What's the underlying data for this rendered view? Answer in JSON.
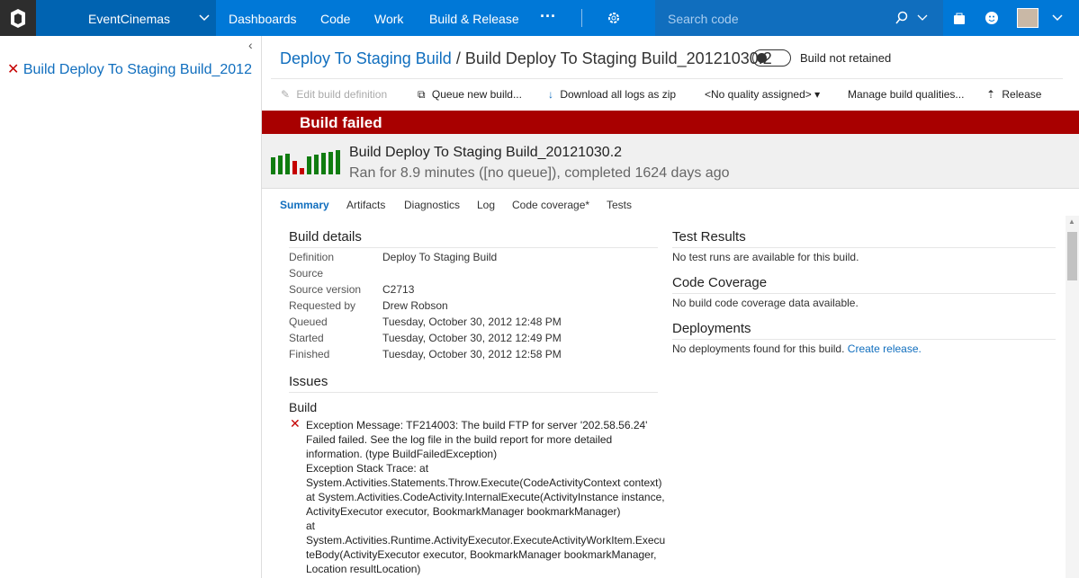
{
  "nav": {
    "project": "EventCinemas",
    "items": [
      "Dashboards",
      "Code",
      "Work",
      "Build & Release"
    ],
    "search_placeholder": "Search code"
  },
  "left_panel": {
    "build_item": "Build Deploy To Staging Build_2012"
  },
  "header": {
    "definition_link": "Deploy To Staging Build",
    "separator": "/",
    "build_name": "Build Deploy To Staging Build_20121030.2",
    "retain_status": "Build not retained"
  },
  "toolbar": [
    "Edit build definition",
    "Queue new build...",
    "Download all logs as zip",
    "<No quality assigned>",
    "Manage build qualities...",
    "Release"
  ],
  "status_banner": "Build failed",
  "summary": {
    "title": "Build Deploy To Staging Build_20121030.2",
    "subtitle": "Ran for 8.9 minutes ([no queue]), completed 1624 days ago"
  },
  "tabs": [
    "Summary",
    "Artifacts",
    "Diagnostics",
    "Log",
    "Code coverage*",
    "Tests"
  ],
  "build_details": {
    "heading": "Build details",
    "rows": [
      [
        "Definition",
        "Deploy To Staging Build"
      ],
      [
        "Source",
        ""
      ],
      [
        "Source version",
        "C2713"
      ],
      [
        "Requested by",
        "Drew Robson"
      ],
      [
        "Queued",
        "Tuesday, October 30, 2012 12:48 PM"
      ],
      [
        "Started",
        "Tuesday, October 30, 2012 12:49 PM"
      ],
      [
        "Finished",
        "Tuesday, October 30, 2012 12:58 PM"
      ]
    ]
  },
  "issues": {
    "heading": "Issues",
    "group": "Build",
    "lines": [
      "Exception Message: TF214003: The build FTP for server '202.58.56.24'",
      "Failed failed. See the log file in the build report for more detailed",
      "information. (type BuildFailedException)",
      "Exception Stack Trace: at",
      "System.Activities.Statements.Throw.Execute(CodeActivityContext context)",
      "at System.Activities.CodeActivity.InternalExecute(ActivityInstance instance,",
      "ActivityExecutor executor, BookmarkManager bookmarkManager)",
      "at",
      "System.Activities.Runtime.ActivityExecutor.ExecuteActivityWorkItem.Execu",
      "teBody(ActivityExecutor executor, BookmarkManager bookmarkManager,",
      "Location resultLocation)"
    ]
  },
  "test_results": {
    "heading": "Test Results",
    "text": "No test runs are available for this build."
  },
  "code_coverage": {
    "heading": "Code Coverage",
    "text": "No build code coverage data available."
  },
  "deployments": {
    "heading": "Deployments",
    "text": "No deployments found for this build.",
    "link": "Create release."
  }
}
